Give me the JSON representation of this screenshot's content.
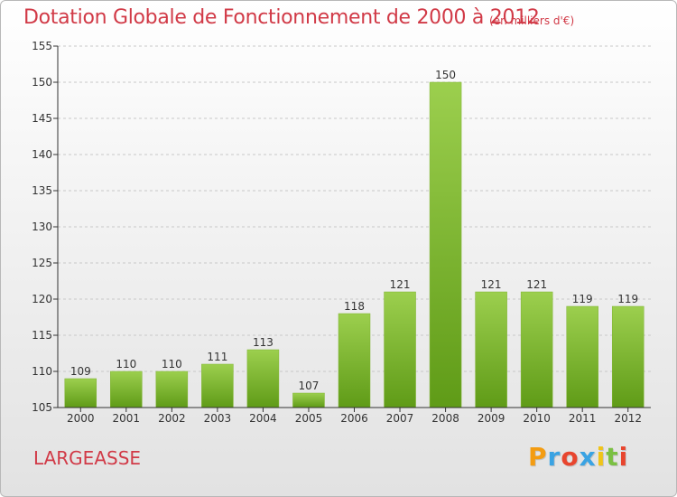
{
  "header": {
    "title": "Dotation Globale de Fonctionnement de 2000 à 2012",
    "unit": "(en milliers d'€)"
  },
  "footer": {
    "commune": "LARGEASSE",
    "logo_letters": [
      "P",
      "r",
      "o",
      "x",
      "i",
      "t",
      "i"
    ],
    "logo_colors": [
      "#f39c12",
      "#3aa3e3",
      "#e8452e",
      "#3aa3e3",
      "#f0c419",
      "#7bc043",
      "#e8452e"
    ]
  },
  "colors": {
    "text": "#d13a47",
    "bar_light": "#9ccf4e",
    "bar_dark": "#5f9b17",
    "grid": "#c8c8c8",
    "axis": "#333333"
  },
  "chart_data": {
    "type": "bar",
    "title": "Dotation Globale de Fonctionnement de 2000 à 2012",
    "xlabel": "",
    "ylabel": "",
    "ylim": [
      105,
      155
    ],
    "yticks": [
      105,
      110,
      115,
      120,
      125,
      130,
      135,
      140,
      145,
      150,
      155
    ],
    "grid": true,
    "categories": [
      "2000",
      "2001",
      "2002",
      "2003",
      "2004",
      "2005",
      "2006",
      "2007",
      "2008",
      "2009",
      "2010",
      "2011",
      "2012"
    ],
    "values": [
      109,
      110,
      110,
      111,
      113,
      107,
      118,
      121,
      150,
      121,
      121,
      119,
      119
    ],
    "data_labels": [
      "109",
      "110",
      "110",
      "111",
      "113",
      "107",
      "118",
      "121",
      "150",
      "121",
      "121",
      "119",
      "119"
    ]
  }
}
